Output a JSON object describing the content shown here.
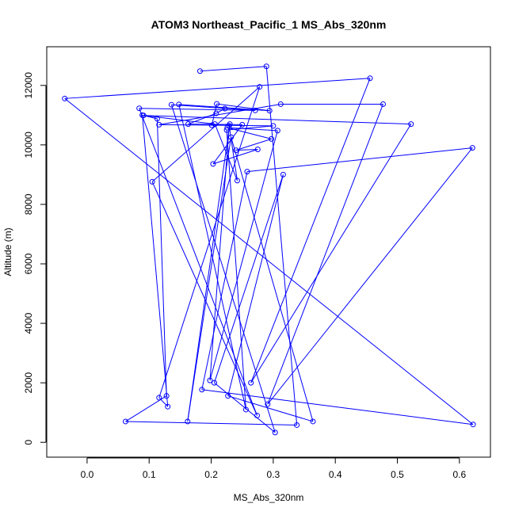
{
  "chart_data": {
    "type": "line",
    "title": "ATOM3 Northeast_Pacific_1 MS_Abs_320nm",
    "xlabel": "MS_Abs_320nm",
    "ylabel": "Altitude (m)",
    "xlim": [
      -0.065,
      0.65
    ],
    "ylim": [
      -500,
      13300
    ],
    "x_ticks": [
      0.0,
      0.1,
      0.2,
      0.3,
      0.4,
      0.5,
      0.6
    ],
    "x_tick_labels": [
      "0.0",
      "0.1",
      "0.2",
      "0.3",
      "0.4",
      "0.5",
      "0.6"
    ],
    "y_ticks": [
      0,
      2000,
      4000,
      6000,
      8000,
      10000,
      12000
    ],
    "y_tick_labels": [
      "0",
      "2000",
      "4000",
      "6000",
      "8000",
      "10000",
      "12000"
    ],
    "grid": false,
    "series": [
      {
        "color": "#0000ff",
        "marker": "open-circle",
        "points": [
          {
            "x": 0.182,
            "y": 12480
          },
          {
            "x": 0.289,
            "y": 12640
          },
          {
            "x": 0.338,
            "y": 580
          },
          {
            "x": 0.062,
            "y": 700
          },
          {
            "x": 0.128,
            "y": 1560
          },
          {
            "x": 0.113,
            "y": 10880
          },
          {
            "x": 0.089,
            "y": 11000
          },
          {
            "x": 0.13,
            "y": 1200
          },
          {
            "x": 0.116,
            "y": 1500
          },
          {
            "x": 0.278,
            "y": 11950
          },
          {
            "x": 0.105,
            "y": 8760
          },
          {
            "x": 0.274,
            "y": 900
          },
          {
            "x": 0.084,
            "y": 11230
          },
          {
            "x": 0.271,
            "y": 11160
          },
          {
            "x": 0.136,
            "y": 11350
          },
          {
            "x": 0.303,
            "y": 330
          },
          {
            "x": 0.205,
            "y": 2000
          },
          {
            "x": 0.316,
            "y": 9000
          },
          {
            "x": 0.227,
            "y": 1560
          },
          {
            "x": 0.364,
            "y": 700
          },
          {
            "x": 0.232,
            "y": 10260
          },
          {
            "x": 0.162,
            "y": 700
          },
          {
            "x": 0.23,
            "y": 10700
          },
          {
            "x": 0.201,
            "y": 10660
          },
          {
            "x": 0.209,
            "y": 11380
          },
          {
            "x": 0.294,
            "y": 11150
          },
          {
            "x": 0.148,
            "y": 11360
          },
          {
            "x": 0.256,
            "y": 1100
          },
          {
            "x": 0.225,
            "y": 10500
          },
          {
            "x": 0.3,
            "y": 10640
          },
          {
            "x": 0.116,
            "y": 10680
          },
          {
            "x": 0.312,
            "y": 11370
          },
          {
            "x": 0.477,
            "y": 11370
          },
          {
            "x": 0.291,
            "y": 1280
          },
          {
            "x": 0.621,
            "y": 9900
          },
          {
            "x": 0.258,
            "y": 9100
          },
          {
            "x": 0.185,
            "y": 1770
          },
          {
            "x": 0.622,
            "y": 600
          },
          {
            "x": -0.036,
            "y": 11560
          },
          {
            "x": 0.456,
            "y": 12240
          },
          {
            "x": 0.264,
            "y": 2000
          },
          {
            "x": 0.522,
            "y": 10700
          },
          {
            "x": 0.091,
            "y": 10990
          },
          {
            "x": 0.206,
            "y": 10700
          },
          {
            "x": 0.242,
            "y": 8800
          },
          {
            "x": 0.229,
            "y": 10640
          },
          {
            "x": 0.198,
            "y": 2080
          },
          {
            "x": 0.307,
            "y": 10480
          },
          {
            "x": 0.226,
            "y": 10580
          },
          {
            "x": 0.297,
            "y": 10200
          },
          {
            "x": 0.24,
            "y": 9820
          },
          {
            "x": 0.275,
            "y": 9850
          },
          {
            "x": 0.203,
            "y": 9360
          },
          {
            "x": 0.25,
            "y": 10680
          },
          {
            "x": 0.163,
            "y": 10700
          },
          {
            "x": 0.208,
            "y": 11060
          },
          {
            "x": 0.222,
            "y": 11220
          }
        ]
      }
    ]
  }
}
